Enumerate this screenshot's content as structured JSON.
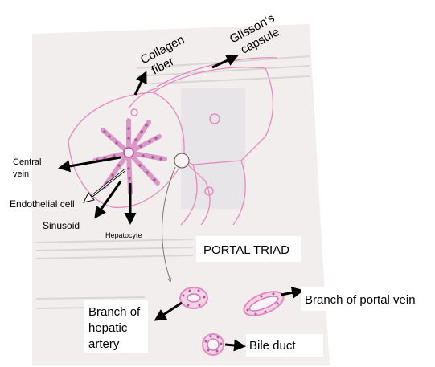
{
  "labels": {
    "collagen_fiber": [
      "Collagen",
      "fiber"
    ],
    "glissons_capsule": [
      "Glisson's",
      "capsule"
    ],
    "central_vein": [
      "Central",
      "vein"
    ],
    "endothelial_cell": "Endothelial cell",
    "sinusoid": "Sinusoid",
    "hepatocyte": "Hepatocyte",
    "portal_triad": "PORTAL TRIAD",
    "branch_portal_vein": "Branch of portal vein",
    "branch_hepatic_artery": [
      "Branch of",
      "hepatic",
      "artery"
    ],
    "bile_duct": "Bile duct"
  },
  "colors": {
    "paper": "#f1eeed",
    "tissue_pink": "#e58bbd",
    "cell_purple": "#a35aa0",
    "arrow": "#000000",
    "pointer_gray": "#777777"
  }
}
